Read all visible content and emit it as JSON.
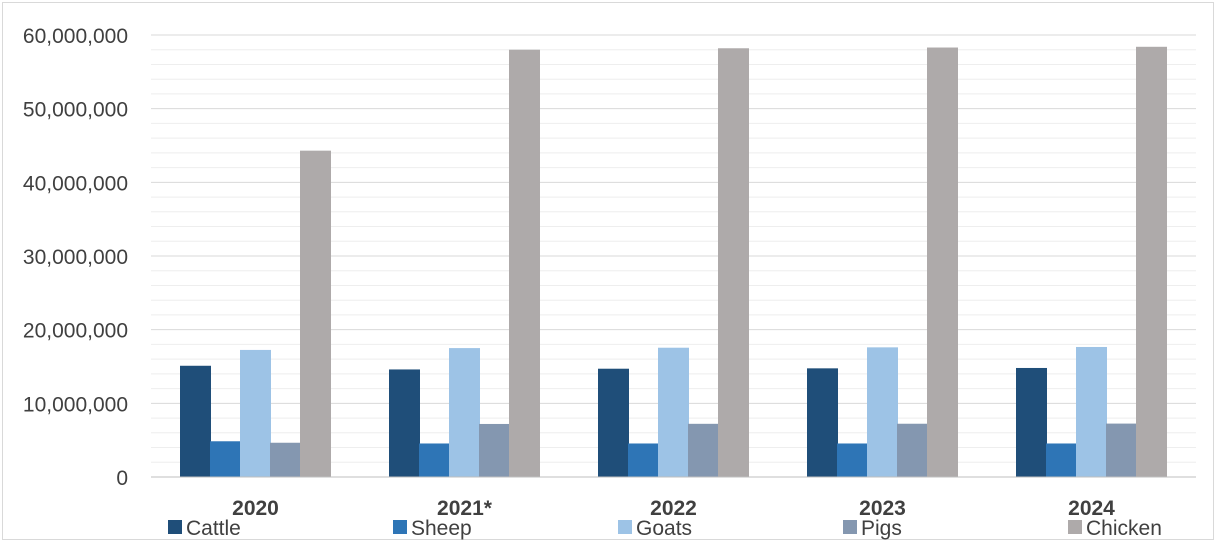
{
  "chart_data": {
    "type": "bar",
    "title": "",
    "xlabel": "",
    "ylabel": "",
    "categories": [
      "2020",
      "2021*",
      "2022",
      "2023",
      "2024"
    ],
    "ylim": [
      0,
      60000000
    ],
    "yticks": [
      "0",
      "10,000,000",
      "20,000,000",
      "30,000,000",
      "40,000,000",
      "50,000,000",
      "60,000,000"
    ],
    "grid": true,
    "legend_position": "bottom",
    "series": [
      {
        "name": "Cattle",
        "color": "#1f4e79",
        "values": [
          15100000,
          14600000,
          14700000,
          14750000,
          14800000
        ]
      },
      {
        "name": "Sheep",
        "color": "#2e75b6",
        "values": [
          4850000,
          4550000,
          4550000,
          4550000,
          4550000
        ]
      },
      {
        "name": "Goats",
        "color": "#9dc3e6",
        "values": [
          17250000,
          17500000,
          17550000,
          17600000,
          17650000
        ]
      },
      {
        "name": "Pigs",
        "color": "#8497b0",
        "values": [
          4650000,
          7200000,
          7220000,
          7230000,
          7250000
        ]
      },
      {
        "name": "Chicken",
        "color": "#aeaaaa",
        "values": [
          44300000,
          58000000,
          58200000,
          58300000,
          58400000
        ]
      }
    ]
  }
}
